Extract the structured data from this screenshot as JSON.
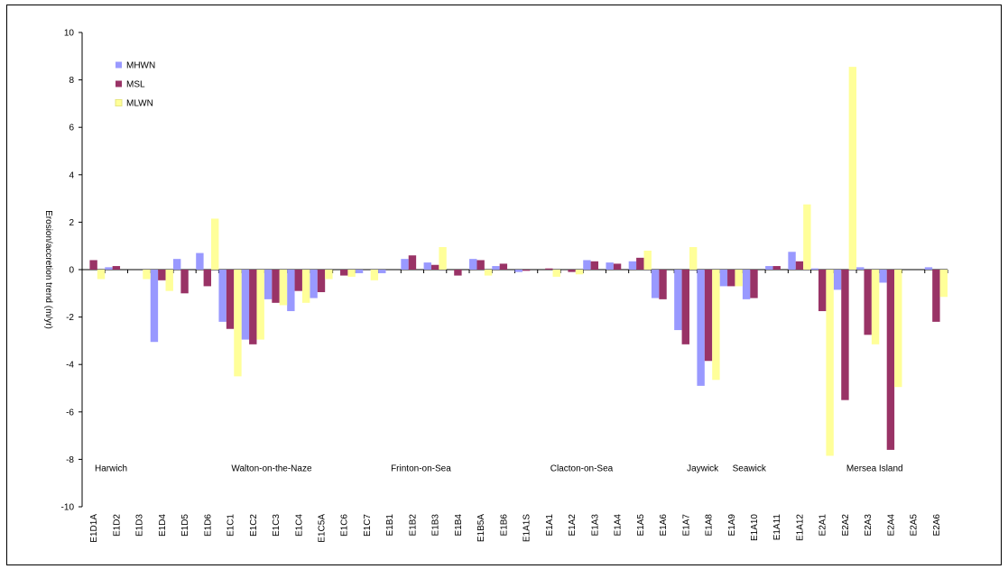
{
  "chart_data": {
    "type": "bar",
    "ylabel": "Erosion/accretion trend (m/yr)",
    "xlabel": "",
    "ylim": [
      -10,
      10
    ],
    "yticks": [
      -10,
      -8,
      -6,
      -4,
      -2,
      0,
      2,
      4,
      6,
      8,
      10
    ],
    "grid": false,
    "legend_position": "top-left",
    "categories": [
      "E1D1A",
      "E1D2",
      "E1D3",
      "E1D4",
      "E1D5",
      "E1D6",
      "E1C1",
      "E1C2",
      "E1C3",
      "E1C4",
      "E1C5A",
      "E1C6",
      "E1C7",
      "E1B1",
      "E1B2",
      "E1B3",
      "E1B4",
      "E1B5A",
      "E1B6",
      "E1A1S",
      "E1A1",
      "E1A2",
      "E1A3",
      "E1A4",
      "E1A5",
      "E1A6",
      "E1A7",
      "E1A8",
      "E1A9",
      "E1A10",
      "E1A11",
      "E1A12",
      "E2A1",
      "E2A2",
      "E2A3",
      "E2A4",
      "E2A5",
      "E2A6"
    ],
    "series": [
      {
        "name": "MHWN",
        "color": "#9999ff",
        "values": [
          0.0,
          0.1,
          0.0,
          -3.05,
          0.45,
          0.7,
          -2.2,
          -2.95,
          -1.25,
          -1.75,
          -1.2,
          0.0,
          -0.15,
          -0.15,
          0.45,
          0.3,
          0.0,
          0.45,
          0.15,
          -0.1,
          0.0,
          0.0,
          0.4,
          0.3,
          0.35,
          -1.2,
          -2.55,
          -4.9,
          -0.7,
          -1.25,
          0.15,
          0.75,
          0.05,
          -0.85,
          0.1,
          -0.55,
          0.0,
          0.1
        ]
      },
      {
        "name": "MSL",
        "color": "#993366",
        "values": [
          0.4,
          0.15,
          0.0,
          -0.45,
          -1.0,
          -0.7,
          -2.5,
          -3.15,
          -1.4,
          -0.9,
          -0.95,
          -0.25,
          0.0,
          0.0,
          0.6,
          0.2,
          -0.25,
          0.4,
          0.25,
          -0.05,
          0.05,
          -0.1,
          0.35,
          0.25,
          0.5,
          -1.25,
          -3.15,
          -3.85,
          -0.7,
          -1.2,
          0.15,
          0.35,
          -1.75,
          -5.5,
          -2.75,
          -7.6,
          0.0,
          -2.2
        ]
      },
      {
        "name": "MLWN",
        "color": "#ffff99",
        "values": [
          -0.4,
          0.0,
          -0.4,
          -0.9,
          0.0,
          2.15,
          -4.5,
          -2.95,
          -1.5,
          -1.4,
          -0.4,
          -0.3,
          -0.45,
          0.0,
          0.0,
          0.95,
          0.0,
          -0.25,
          0.0,
          0.0,
          -0.3,
          -0.2,
          0.0,
          0.0,
          0.8,
          0.0,
          0.95,
          -4.65,
          -0.7,
          0.0,
          0.0,
          2.75,
          -7.85,
          8.55,
          -3.15,
          -4.95,
          0.0,
          -1.15
        ]
      }
    ],
    "annotations": [
      {
        "text": "Harwich",
        "category_index": 0,
        "y": -8.5
      },
      {
        "text": "Walton-on-the-Naze",
        "category_index": 6,
        "y": -8.5
      },
      {
        "text": "Frinton-on-Sea",
        "category_index": 13,
        "y": -8.5
      },
      {
        "text": "Clacton-on-Sea",
        "category_index": 20,
        "y": -8.5
      },
      {
        "text": "Jaywick",
        "category_index": 26,
        "y": -8.5
      },
      {
        "text": "Seawick",
        "category_index": 28,
        "y": -8.5
      },
      {
        "text": "Mersea Island",
        "category_index": 33,
        "y": -8.5
      }
    ]
  }
}
